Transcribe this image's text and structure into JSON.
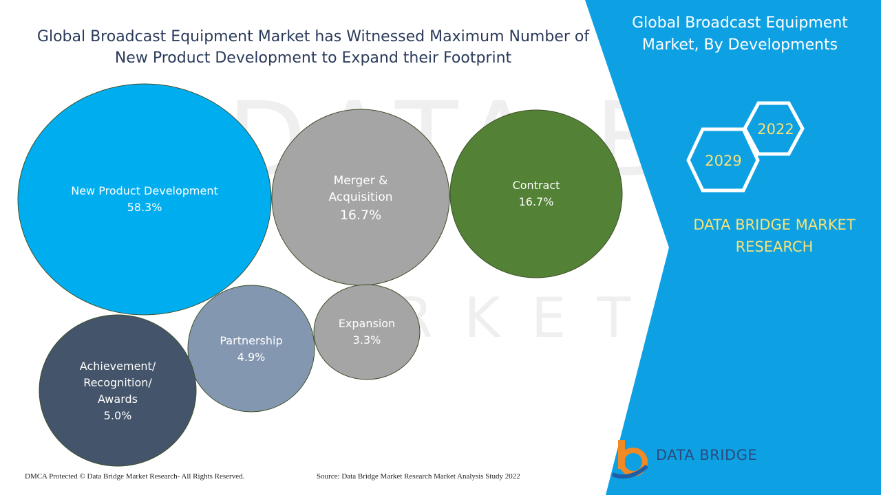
{
  "header": {
    "title_line1": "Global Broadcast Equipment Market has Witnessed Maximum Number of",
    "title_line2": "New Product Development to Expand their Footprint"
  },
  "side_panel": {
    "title_line1": "Global Broadcast Equipment",
    "title_line2": "Market, By Developments",
    "year_start": "2022",
    "year_end": "2029",
    "brand_line1": "DATA BRIDGE MARKET",
    "brand_line2": "RESEARCH",
    "bg_color": "#0da0e2"
  },
  "chart_data": {
    "type": "bubble",
    "units": "%",
    "series": [
      {
        "label_lines": [
          "New Product Development"
        ],
        "value": 58.3,
        "value_label": "58.3%",
        "color": "#00aeef"
      },
      {
        "label_lines": [
          "Merger &",
          "Acquisition"
        ],
        "value": 16.7,
        "value_label": "16.7%",
        "color": "#a5a5a5"
      },
      {
        "label_lines": [
          "Contract"
        ],
        "value": 16.7,
        "value_label": "16.7%",
        "color": "#538135"
      },
      {
        "label_lines": [
          "Partnership"
        ],
        "value": 4.9,
        "value_label": "4.9%",
        "color": "#8497b0"
      },
      {
        "label_lines": [
          "Expansion"
        ],
        "value": 3.3,
        "value_label": "3.3%",
        "color": "#a5a5a5"
      },
      {
        "label_lines": [
          "Achievement/",
          "Recognition/",
          "Awards"
        ],
        "value": 5.0,
        "value_label": "5.0%",
        "color": "#44546a"
      }
    ]
  },
  "footer": {
    "copyright": "DMCA Protected © Data Bridge Market Research- All Rights Reserved.",
    "source": "Source: Data Bridge Market Research Market Analysis Study 2022",
    "logo_text": "DATA BRIDGE"
  }
}
